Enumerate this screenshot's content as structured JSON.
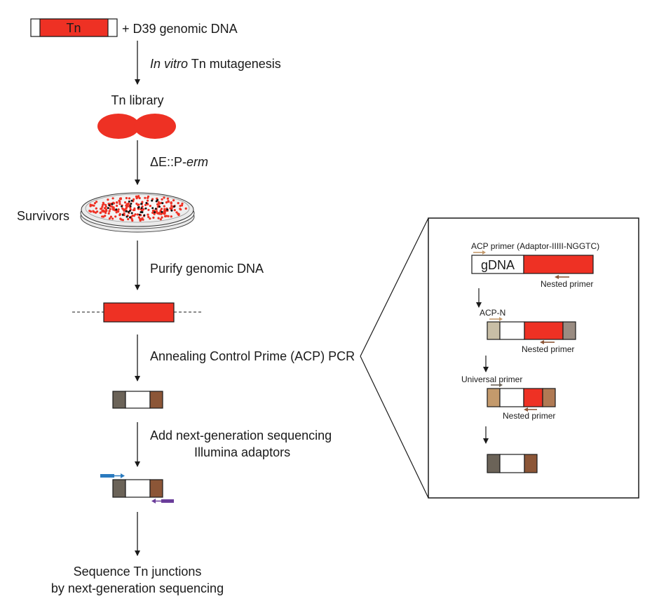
{
  "transposon_label": "Tn",
  "step1_suffix": "+ D39 genomic DNA",
  "mutagenesis": {
    "italic": "In vitro",
    "rest": " Tn mutagenesis"
  },
  "library_label": "Tn library",
  "selection": {
    "prefix": "ΔE::P-",
    "italic": "erm"
  },
  "survivors_label": "Survivors",
  "purify_label": "Purify genomic DNA",
  "acp_pcr_label": "Annealing Control Prime (ACP) PCR",
  "ngs_adaptor_line1": "Add next-generation sequencing",
  "ngs_adaptor_line2": "Illumina adaptors",
  "final_line1": "Sequence Tn junctions",
  "final_line2": "by next-generation sequencing",
  "inset": {
    "acp_primer_label": "ACP primer (Adaptor-IIIII-NGGTC)",
    "gdna_label": "gDNA",
    "nested_primer_label": "Nested primer",
    "acp_n_label": "ACP-N",
    "universal_primer_label": "Universal primer"
  },
  "colors": {
    "tn_red": "#ee3124",
    "adaptor_dark": "#6b6358",
    "adaptor_brown": "#8c5637",
    "acp_beige": "#c8bea6",
    "acp_gray": "#9a8c82",
    "universal_tan": "#c49a6c",
    "universal_brown": "#b07a54",
    "blue_primer": "#2b7bbf",
    "purple_primer": "#6a3d9a",
    "primer_arrow_tan": "#c49a6c",
    "primer_arrow_brown": "#8c5637"
  }
}
